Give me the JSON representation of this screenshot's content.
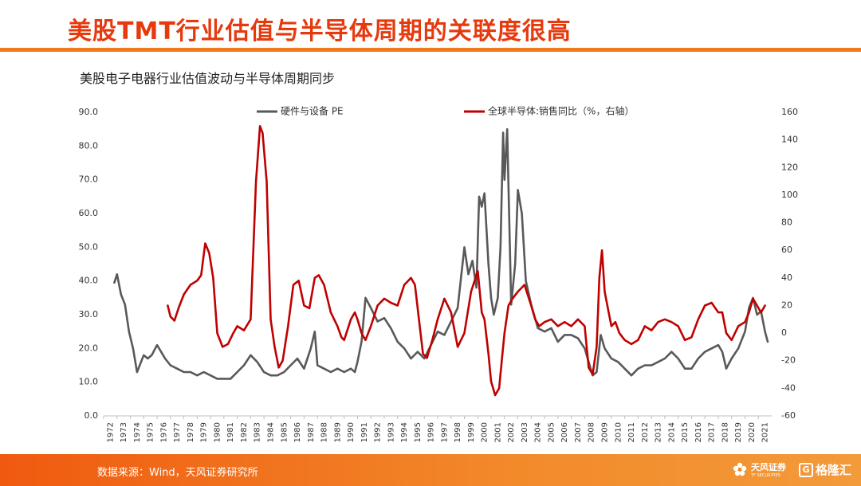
{
  "header": {
    "title": "美股TMT行业估值与半导体周期的关联度很高",
    "subtitle": "美股电子电器行业估值波动与半导体周期同步"
  },
  "footer": {
    "source": "数据来源：Wind，天风证券研究所",
    "brand_tianfeng": "天风证券",
    "brand_tianfeng_sub": "TF SECURITIES",
    "brand_gelonghui": "格隆汇"
  },
  "colors": {
    "title": "#e63a0e",
    "accent_bar": "#f07a1c",
    "series_pe": "#595959",
    "series_semi": "#c00000"
  },
  "chart_data": {
    "type": "line",
    "x_range": [
      1972,
      2022
    ],
    "x_ticks": [
      "1972",
      "1973",
      "1974",
      "1975",
      "1976",
      "1977",
      "1978",
      "1979",
      "1980",
      "1981",
      "1982",
      "1983",
      "1984",
      "1985",
      "1986",
      "1987",
      "1988",
      "1989",
      "1990",
      "1991",
      "1992",
      "1993",
      "1994",
      "1995",
      "1996",
      "1997",
      "1998",
      "1999",
      "2000",
      "2001",
      "2002",
      "2003",
      "2004",
      "2005",
      "2006",
      "2007",
      "2008",
      "2009",
      "2010",
      "2011",
      "2012",
      "2013",
      "2014",
      "2015",
      "2016",
      "2017",
      "2018",
      "2019",
      "2020",
      "2021"
    ],
    "y_left": {
      "min": 0,
      "max": 90,
      "ticks": [
        "0.0",
        "10.0",
        "20.0",
        "30.0",
        "40.0",
        "50.0",
        "60.0",
        "70.0",
        "80.0",
        "90.0"
      ]
    },
    "y_right": {
      "min": -60,
      "max": 160,
      "ticks": [
        "-60",
        "-40",
        "-20",
        "0",
        "20",
        "40",
        "60",
        "80",
        "100",
        "120",
        "140",
        "160"
      ]
    },
    "grid": false,
    "legend_position": "top",
    "series": [
      {
        "name": "硬件与设备 PE",
        "axis": "left",
        "x": [
          1972.8,
          1973.0,
          1973.3,
          1973.6,
          1973.9,
          1974.2,
          1974.5,
          1974.8,
          1975.0,
          1975.3,
          1975.6,
          1976.0,
          1976.3,
          1976.6,
          1977.0,
          1977.5,
          1978.0,
          1978.5,
          1979.0,
          1979.5,
          1980.0,
          1980.5,
          1981.0,
          1981.5,
          1982.0,
          1982.5,
          1983.0,
          1983.5,
          1984.0,
          1984.5,
          1985.0,
          1985.5,
          1986.0,
          1986.5,
          1987.0,
          1987.5,
          1987.8,
          1988.0,
          1988.5,
          1989.0,
          1989.5,
          1990.0,
          1990.5,
          1990.8,
          1991.0,
          1991.3,
          1991.6,
          1992.0,
          1992.5,
          1993.0,
          1993.5,
          1994.0,
          1994.5,
          1995.0,
          1995.5,
          1996.0,
          1996.5,
          1997.0,
          1997.5,
          1998.0,
          1998.5,
          1999.0,
          1999.3,
          1999.6,
          1999.9,
          2000.1,
          2000.3,
          2000.5,
          2000.8,
          2001.0,
          2001.2,
          2001.5,
          2001.7,
          2001.9,
          2002.0,
          2002.2,
          2002.5,
          2002.8,
          2003.0,
          2003.3,
          2003.6,
          2004.0,
          2004.5,
          2005.0,
          2005.5,
          2006.0,
          2006.5,
          2007.0,
          2007.5,
          2008.0,
          2008.3,
          2008.6,
          2008.9,
          2009.2,
          2009.5,
          2010.0,
          2010.5,
          2011.0,
          2011.5,
          2012.0,
          2012.5,
          2013.0,
          2013.5,
          2014.0,
          2014.5,
          2015.0,
          2015.5,
          2016.0,
          2016.5,
          2017.0,
          2017.5,
          2018.0,
          2018.3,
          2018.6,
          2019.0,
          2019.5,
          2020.0,
          2020.3,
          2020.6,
          2020.9,
          2021.2,
          2021.5,
          2021.7
        ],
        "values": [
          39.5,
          42,
          36,
          33,
          25,
          20,
          13,
          16,
          18,
          17,
          18,
          21,
          19,
          17,
          15,
          14,
          13,
          13,
          12,
          13,
          12,
          11,
          11,
          11,
          13,
          15,
          18,
          16,
          13,
          12,
          12,
          13,
          15,
          17,
          14,
          20,
          25,
          15,
          14,
          13,
          14,
          13,
          14,
          13,
          16,
          22,
          35,
          32,
          28,
          29,
          26,
          22,
          20,
          17,
          19,
          17,
          21,
          25,
          24,
          28,
          32,
          50,
          42,
          46,
          38,
          65,
          62,
          66,
          45,
          35,
          30,
          35,
          50,
          84,
          70,
          85,
          33,
          45,
          67,
          60,
          40,
          33,
          26,
          25,
          26,
          22,
          24,
          24,
          23,
          20,
          16,
          12,
          13,
          24,
          20,
          17,
          16,
          14,
          12,
          14,
          15,
          15,
          16,
          17,
          19,
          17,
          14,
          14,
          17,
          19,
          20,
          21,
          19,
          14,
          17,
          20,
          25,
          32,
          35,
          30,
          31,
          25,
          22
        ]
      },
      {
        "name": "全球半导体:销售同比（%，右轴）",
        "axis": "right",
        "x": [
          1976.8,
          1977.0,
          1977.3,
          1977.6,
          1978.0,
          1978.5,
          1979.0,
          1979.3,
          1979.6,
          1979.9,
          1980.2,
          1980.5,
          1980.9,
          1981.3,
          1981.7,
          1982.0,
          1982.5,
          1983.0,
          1983.4,
          1983.7,
          1983.9,
          1984.2,
          1984.5,
          1984.8,
          1985.1,
          1985.4,
          1985.8,
          1986.2,
          1986.6,
          1987.0,
          1987.4,
          1987.8,
          1988.1,
          1988.5,
          1989.0,
          1989.5,
          1989.8,
          1990.0,
          1990.5,
          1990.8,
          1991.0,
          1991.3,
          1991.6,
          1992.0,
          1992.5,
          1993.0,
          1993.5,
          1994.0,
          1994.5,
          1995.0,
          1995.3,
          1995.6,
          1995.9,
          1996.2,
          1996.6,
          1997.0,
          1997.5,
          1998.0,
          1998.5,
          1999.0,
          1999.5,
          2000.0,
          2000.3,
          2000.5,
          2000.8,
          2001.0,
          2001.3,
          2001.6,
          2001.8,
          2002.0,
          2002.3,
          2002.6,
          2003.0,
          2003.5,
          2004.0,
          2004.3,
          2004.6,
          2005.0,
          2005.5,
          2006.0,
          2006.5,
          2007.0,
          2007.5,
          2008.0,
          2008.3,
          2008.6,
          2008.9,
          2009.1,
          2009.3,
          2009.5,
          2009.8,
          2010.0,
          2010.3,
          2010.6,
          2011.0,
          2011.5,
          2012.0,
          2012.5,
          2013.0,
          2013.5,
          2014.0,
          2014.5,
          2015.0,
          2015.5,
          2016.0,
          2016.5,
          2017.0,
          2017.5,
          2018.0,
          2018.3,
          2018.6,
          2019.0,
          2019.5,
          2020.0,
          2020.3,
          2020.6,
          2020.9,
          2021.2,
          2021.5
        ],
        "values": [
          20,
          12,
          9,
          18,
          28,
          35,
          38,
          42,
          65,
          58,
          40,
          0,
          -10,
          -8,
          0,
          5,
          2,
          10,
          110,
          150,
          145,
          110,
          10,
          -10,
          -25,
          -20,
          5,
          35,
          38,
          20,
          18,
          40,
          42,
          35,
          15,
          5,
          -3,
          -5,
          10,
          15,
          10,
          0,
          -5,
          5,
          20,
          25,
          22,
          20,
          35,
          40,
          35,
          10,
          -15,
          -18,
          -5,
          10,
          25,
          15,
          -10,
          0,
          30,
          45,
          15,
          10,
          -15,
          -35,
          -45,
          -40,
          -20,
          0,
          20,
          25,
          30,
          35,
          20,
          10,
          5,
          8,
          10,
          5,
          8,
          5,
          10,
          5,
          -25,
          -30,
          -10,
          40,
          60,
          30,
          15,
          5,
          8,
          0,
          -5,
          -8,
          -5,
          5,
          2,
          8,
          10,
          8,
          5,
          -5,
          -3,
          10,
          20,
          22,
          15,
          15,
          0,
          -5,
          5,
          8,
          15,
          25,
          20,
          15,
          20
        ]
      }
    ]
  }
}
